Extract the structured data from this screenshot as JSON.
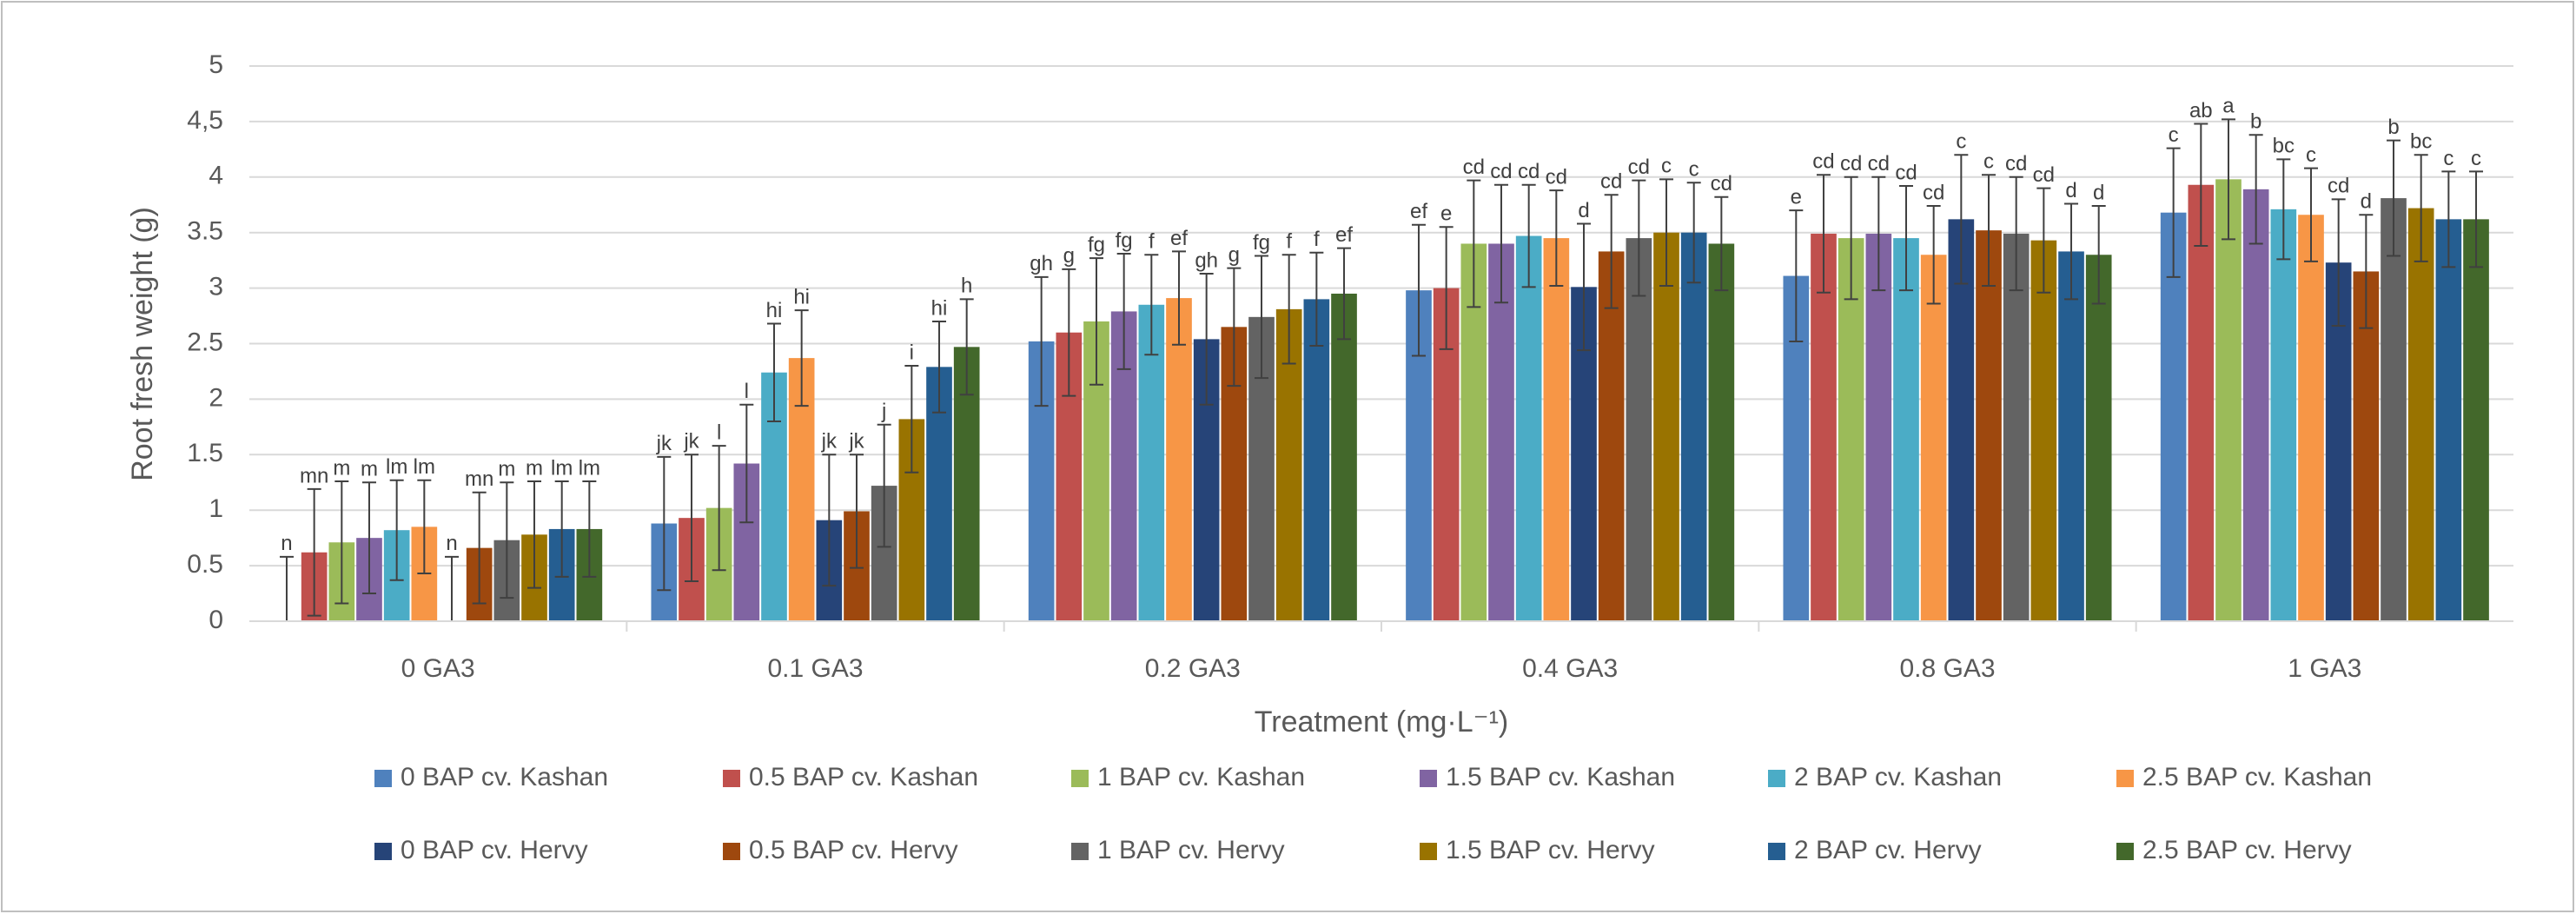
{
  "chart_data": {
    "type": "bar",
    "y_label": "Root fresh weight (g)",
    "x_label": "Treatment (mg·L⁻¹)",
    "categories": [
      "0 GA3",
      "0.1 GA3",
      "0.2 GA3",
      "0.4 GA3",
      "0.8 GA3",
      "1 GA3"
    ],
    "ylim": [
      0,
      5
    ],
    "yticks": [
      0,
      0.5,
      1,
      1.5,
      2,
      2.5,
      3,
      3.5,
      4,
      {
        "value": 4.5,
        "label": "4,5"
      },
      5
    ],
    "grid": true,
    "series": [
      {
        "name": "0 BAP cv. Kashan",
        "color": "#4f81bd",
        "values": [
          0,
          0.88,
          2.52,
          2.98,
          3.11,
          3.68
        ],
        "errors": [
          0.58,
          0.6,
          0.58,
          0.59,
          0.59,
          0.58
        ],
        "letters": [
          "n",
          "jk",
          "gh",
          "ef",
          "e",
          "c"
        ]
      },
      {
        "name": "0.5 BAP cv. Kashan",
        "color": "#c0504d",
        "values": [
          0.62,
          0.93,
          2.6,
          3.0,
          3.49,
          3.93
        ],
        "errors": [
          0.57,
          0.57,
          0.57,
          0.55,
          0.53,
          0.55
        ],
        "letters": [
          "mn",
          "jk",
          "g",
          "e",
          "cd",
          "ab"
        ]
      },
      {
        "name": "1 BAP cv. Kashan",
        "color": "#9bbb59",
        "values": [
          0.71,
          1.02,
          2.7,
          3.4,
          3.45,
          3.98
        ],
        "errors": [
          0.55,
          0.56,
          0.57,
          0.57,
          0.55,
          0.54
        ],
        "letters": [
          "m",
          "l",
          "fg",
          "cd",
          "cd",
          "a"
        ]
      },
      {
        "name": "1.5 BAP cv. Kashan",
        "color": "#8064a2",
        "values": [
          0.75,
          1.42,
          2.79,
          3.4,
          3.49,
          3.89
        ],
        "errors": [
          0.5,
          0.53,
          0.52,
          0.53,
          0.51,
          0.49
        ],
        "letters": [
          "m",
          "l",
          "fg",
          "cd",
          "cd",
          "b"
        ]
      },
      {
        "name": "2 BAP cv. Kashan",
        "color": "#4bacc6",
        "values": [
          0.82,
          2.24,
          2.85,
          3.47,
          3.45,
          3.71
        ],
        "errors": [
          0.45,
          0.44,
          0.45,
          0.46,
          0.47,
          0.45
        ],
        "letters": [
          "lm",
          "hi",
          "f",
          "cd",
          "cd",
          "bc"
        ]
      },
      {
        "name": "2.5 BAP cv. Kashan",
        "color": "#f79646",
        "values": [
          0.85,
          2.37,
          2.91,
          3.45,
          3.3,
          3.66
        ],
        "errors": [
          0.42,
          0.43,
          0.42,
          0.43,
          0.44,
          0.42
        ],
        "letters": [
          "lm",
          "hi",
          "ef",
          "cd",
          "cd",
          "c"
        ]
      },
      {
        "name": "0 BAP cv. Hervy",
        "color": "#264478",
        "values": [
          0,
          0.91,
          2.54,
          3.01,
          3.62,
          3.23
        ],
        "errors": [
          0.58,
          0.59,
          0.59,
          0.57,
          0.58,
          0.57
        ],
        "letters": [
          "n",
          "jk",
          "gh",
          "d",
          "c",
          "cd"
        ]
      },
      {
        "name": "0.5 BAP cv. Hervy",
        "color": "#9e480e",
        "values": [
          0.66,
          0.99,
          2.65,
          3.33,
          3.52,
          3.15
        ],
        "errors": [
          0.5,
          0.51,
          0.53,
          0.51,
          0.5,
          0.51
        ],
        "letters": [
          "mn",
          "jk",
          "g",
          "cd",
          "c",
          "d"
        ]
      },
      {
        "name": "1 BAP cv. Hervy",
        "color": "#636363",
        "values": [
          0.73,
          1.22,
          2.74,
          3.45,
          3.49,
          3.81
        ],
        "errors": [
          0.52,
          0.55,
          0.55,
          0.52,
          0.51,
          0.52
        ],
        "letters": [
          "m",
          "j",
          "fg",
          "cd",
          "cd",
          "b"
        ]
      },
      {
        "name": "1.5 BAP cv. Hervy",
        "color": "#997300",
        "values": [
          0.78,
          1.82,
          2.81,
          3.5,
          3.43,
          3.72
        ],
        "errors": [
          0.48,
          0.48,
          0.49,
          0.48,
          0.47,
          0.48
        ],
        "letters": [
          "m",
          "i",
          "f",
          "c",
          "cd",
          "bc"
        ]
      },
      {
        "name": "2 BAP cv. Hervy",
        "color": "#255e91",
        "values": [
          0.83,
          2.29,
          2.9,
          3.5,
          3.33,
          3.62
        ],
        "errors": [
          0.43,
          0.41,
          0.42,
          0.45,
          0.43,
          0.43
        ],
        "letters": [
          "lm",
          "hi",
          "f",
          "c",
          "d",
          "c"
        ]
      },
      {
        "name": "2.5 BAP cv. Hervy",
        "color": "#43682b",
        "values": [
          0.83,
          2.47,
          2.95,
          3.4,
          3.3,
          3.62
        ],
        "errors": [
          0.43,
          0.43,
          0.41,
          0.42,
          0.44,
          0.43
        ],
        "letters": [
          "lm",
          "h",
          "ef",
          "cd",
          "d",
          "c"
        ]
      }
    ]
  }
}
